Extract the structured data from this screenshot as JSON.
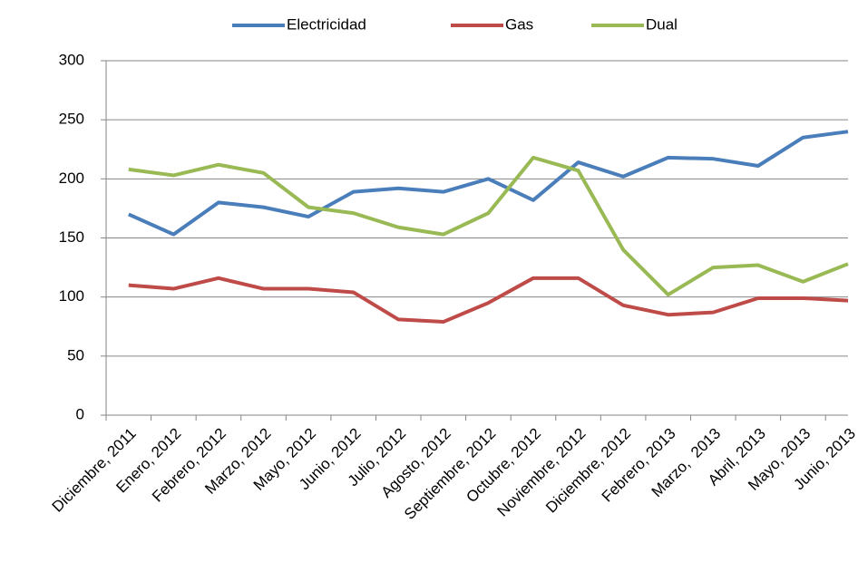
{
  "chart_data": {
    "type": "line",
    "categories": [
      "Diciembre, 2011",
      "Enero, 2012",
      "Febrero, 2012",
      "Marzo, 2012",
      "Mayo, 2012",
      "Junio, 2012",
      "Julio, 2012",
      "Agosto, 2012",
      "Septiembre, 2012",
      "Octubre, 2012",
      "Noviembre, 2012",
      "Diciembre, 2012",
      "Febrero, 2013",
      "Marzo,  2013",
      "Abril, 2013",
      "Mayo, 2013",
      "Junio, 2013"
    ],
    "series": [
      {
        "name": "Electricidad",
        "color": "#4a7ebb",
        "values": [
          170,
          153,
          180,
          176,
          168,
          189,
          192,
          189,
          200,
          182,
          214,
          202,
          218,
          217,
          211,
          235,
          240
        ]
      },
      {
        "name": "Gas",
        "color": "#be4b48",
        "values": [
          110,
          107,
          116,
          107,
          107,
          104,
          81,
          79,
          95,
          116,
          116,
          93,
          85,
          87,
          99,
          99,
          97
        ]
      },
      {
        "name": "Dual",
        "color": "#98b954",
        "values": [
          208,
          203,
          212,
          205,
          176,
          171,
          159,
          153,
          171,
          218,
          207,
          140,
          102,
          125,
          127,
          113,
          128
        ]
      }
    ],
    "ylim": [
      0,
      300
    ],
    "yticks": [
      0,
      50,
      100,
      150,
      200,
      250,
      300
    ],
    "grid": true,
    "legend": "top"
  }
}
